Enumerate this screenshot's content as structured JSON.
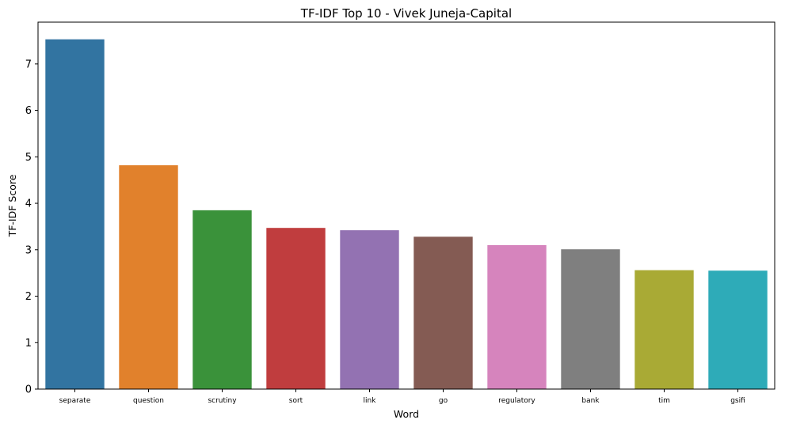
{
  "chart_data": {
    "type": "bar",
    "title": "TF-IDF Top 10 - Vivek Juneja-Capital",
    "xlabel": "Word",
    "ylabel": "TF-IDF Score",
    "categories": [
      "separate",
      "question",
      "scrutiny",
      "sort",
      "link",
      "go",
      "regulatory",
      "bank",
      "tim",
      "gsifi"
    ],
    "values": [
      7.53,
      4.82,
      3.85,
      3.47,
      3.42,
      3.28,
      3.1,
      3.01,
      2.56,
      2.55
    ],
    "colors": [
      "#3274a1",
      "#e1812c",
      "#3a923a",
      "#c03d3e",
      "#9372b2",
      "#845b53",
      "#d684bd",
      "#7f7f7f",
      "#a9aa35",
      "#2eabb8"
    ],
    "ylim": [
      0,
      7.9
    ],
    "yticks": [
      0,
      1,
      2,
      3,
      4,
      5,
      6,
      7
    ],
    "grid": false,
    "legend": "none"
  }
}
